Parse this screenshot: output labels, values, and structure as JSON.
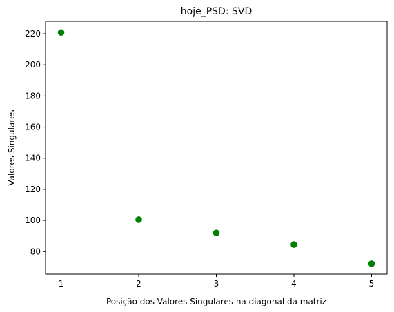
{
  "chart_data": {
    "type": "scatter",
    "title": "hoje_PSD: SVD",
    "xlabel": "Posição dos Valores Singulares na diagonal da matriz",
    "ylabel": "Valores Singulares",
    "x": [
      1,
      2,
      3,
      4,
      5
    ],
    "y": [
      220.8,
      100.5,
      92.0,
      84.5,
      72.2
    ],
    "xlim": [
      0.8,
      5.2
    ],
    "ylim": [
      65.5,
      228.0
    ],
    "xticks": [
      1,
      2,
      3,
      4,
      5
    ],
    "yticks": [
      80,
      100,
      120,
      140,
      160,
      180,
      200,
      220
    ],
    "marker_color": "#008000",
    "grid": false,
    "legend": "none"
  }
}
